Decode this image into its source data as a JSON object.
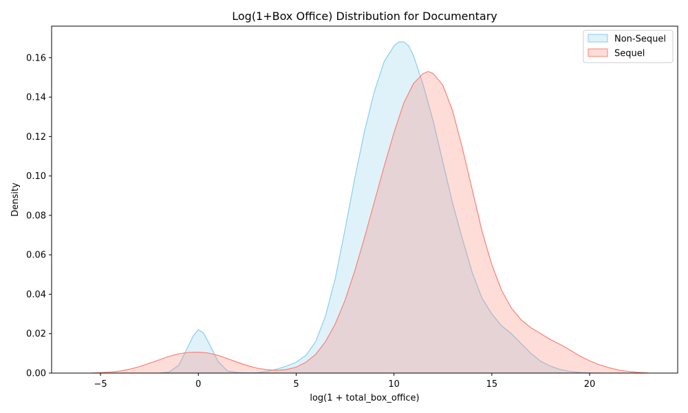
{
  "chart_data": {
    "type": "area",
    "title": "Log(1+Box Office) Distribution for Documentary",
    "xlabel": "log(1 + total_box_office)",
    "ylabel": "Density",
    "xlim": [
      -7.5,
      24.5
    ],
    "ylim": [
      0,
      0.176
    ],
    "x_ticks": [
      -5,
      0,
      5,
      10,
      15,
      20
    ],
    "x_tick_labels": [
      "−5",
      "0",
      "5",
      "10",
      "15",
      "20"
    ],
    "y_ticks": [
      0,
      0.02,
      0.04,
      0.06,
      0.08,
      0.1,
      0.12,
      0.14,
      0.16
    ],
    "y_tick_labels": [
      "0.00",
      "0.02",
      "0.04",
      "0.06",
      "0.08",
      "0.10",
      "0.12",
      "0.14",
      "0.16"
    ],
    "grid": false,
    "legend_position": "top-right",
    "series": [
      {
        "name": "Non-Sequel",
        "line_color": "#87CEEB",
        "fill_color": "#87CEEB",
        "fill_opacity": 0.27,
        "x": [
          -2.0,
          -1.5,
          -1.0,
          -0.5,
          -0.25,
          0.0,
          0.25,
          0.5,
          1.0,
          1.5,
          2.0,
          2.5,
          3.0,
          3.5,
          4.0,
          4.5,
          5.0,
          5.5,
          6.0,
          6.5,
          7.0,
          7.5,
          8.0,
          8.5,
          9.0,
          9.5,
          10.0,
          10.25,
          10.5,
          10.75,
          11.0,
          11.5,
          12.0,
          12.5,
          13.0,
          13.5,
          14.0,
          14.5,
          15.0,
          15.5,
          16.0,
          16.5,
          17.0,
          17.5,
          18.0,
          18.5,
          19.0,
          19.5,
          20.0,
          20.5
        ],
        "y": [
          0.0,
          0.0005,
          0.004,
          0.014,
          0.019,
          0.022,
          0.0205,
          0.016,
          0.006,
          0.001,
          0.0003,
          0.0001,
          0.0002,
          0.0008,
          0.002,
          0.0035,
          0.0055,
          0.009,
          0.016,
          0.029,
          0.048,
          0.073,
          0.099,
          0.123,
          0.143,
          0.158,
          0.166,
          0.168,
          0.168,
          0.166,
          0.161,
          0.146,
          0.128,
          0.107,
          0.086,
          0.068,
          0.051,
          0.038,
          0.03,
          0.024,
          0.02,
          0.015,
          0.01,
          0.006,
          0.0035,
          0.0018,
          0.0008,
          0.0003,
          0.0001,
          0.0
        ]
      },
      {
        "name": "Sequel",
        "line_color": "#FA8072",
        "fill_color": "#FA8072",
        "fill_opacity": 0.27,
        "x": [
          -5.5,
          -5.0,
          -4.5,
          -4.0,
          -3.5,
          -3.0,
          -2.5,
          -2.0,
          -1.5,
          -1.0,
          -0.5,
          0.0,
          0.5,
          1.0,
          1.5,
          2.0,
          2.5,
          3.0,
          3.5,
          4.0,
          4.5,
          5.0,
          5.5,
          6.0,
          6.5,
          7.0,
          7.5,
          8.0,
          8.5,
          9.0,
          9.5,
          10.0,
          10.5,
          11.0,
          11.5,
          11.75,
          12.0,
          12.5,
          13.0,
          13.5,
          14.0,
          14.5,
          15.0,
          15.5,
          16.0,
          16.5,
          17.0,
          17.5,
          18.0,
          18.5,
          19.0,
          19.5,
          20.0,
          20.5,
          21.0,
          21.5,
          22.0,
          22.5,
          23.0
        ],
        "y": [
          0.0,
          0.0002,
          0.0005,
          0.001,
          0.002,
          0.0033,
          0.005,
          0.0067,
          0.0085,
          0.0098,
          0.0105,
          0.0106,
          0.0102,
          0.009,
          0.0073,
          0.0055,
          0.0038,
          0.0025,
          0.0017,
          0.0014,
          0.0018,
          0.003,
          0.0055,
          0.0095,
          0.016,
          0.025,
          0.037,
          0.052,
          0.069,
          0.087,
          0.105,
          0.122,
          0.137,
          0.147,
          0.152,
          0.153,
          0.152,
          0.146,
          0.133,
          0.114,
          0.093,
          0.072,
          0.055,
          0.042,
          0.033,
          0.027,
          0.023,
          0.02,
          0.017,
          0.0145,
          0.0117,
          0.0087,
          0.0062,
          0.0042,
          0.0027,
          0.0015,
          0.0008,
          0.0003,
          0.0
        ]
      }
    ]
  }
}
